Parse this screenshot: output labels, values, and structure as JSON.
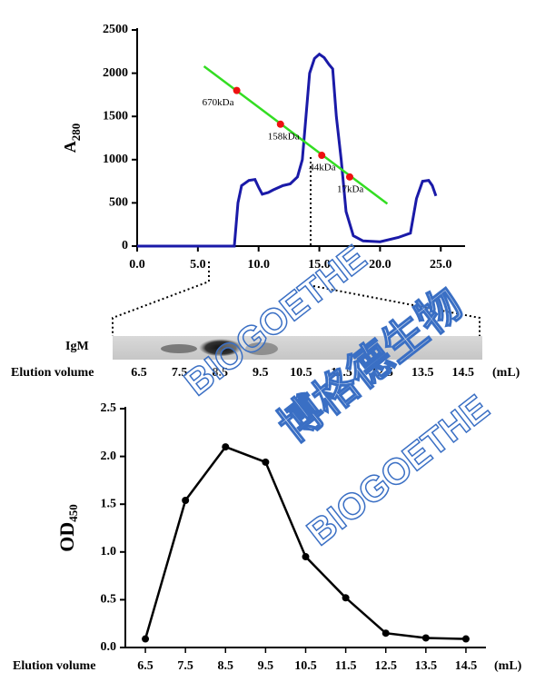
{
  "chart_data": [
    {
      "type": "line",
      "ylabel": "A",
      "ylabel_sub": "280",
      "xlim": [
        0,
        27
      ],
      "ylim": [
        0,
        2500
      ],
      "xticks": [
        {
          "value": 0,
          "label": "0.0"
        },
        {
          "value": 5,
          "label": "5.0"
        },
        {
          "value": 10,
          "label": "10.0"
        },
        {
          "value": 15,
          "label": "15.0"
        },
        {
          "value": 20,
          "label": "20.0"
        },
        {
          "value": 25,
          "label": "25.0"
        }
      ],
      "yticks": [
        0,
        500,
        1000,
        1500,
        2000,
        2500
      ],
      "series": [
        {
          "color": "#1a1aa8",
          "x": [
            0,
            8.0,
            8.3,
            8.6,
            9.2,
            9.7,
            10.0,
            10.3,
            10.8,
            11.2,
            12.0,
            12.6,
            13.2,
            13.6,
            13.9,
            14.2,
            14.6,
            15.0,
            15.4,
            15.8,
            16.1,
            16.4,
            16.8,
            17.2,
            17.8,
            18.6,
            20.0,
            21.5,
            22.5,
            23.0,
            23.5,
            24.0,
            24.3,
            24.6
          ],
          "values": [
            0,
            0,
            500,
            700,
            760,
            770,
            680,
            600,
            620,
            650,
            700,
            720,
            800,
            1000,
            1500,
            2000,
            2170,
            2220,
            2180,
            2100,
            2050,
            1500,
            1000,
            400,
            120,
            60,
            50,
            100,
            150,
            550,
            750,
            760,
            700,
            580
          ]
        },
        {
          "color": "#33dd22",
          "x": [
            5.5,
            20.6
          ],
          "values": [
            2080,
            490
          ]
        }
      ],
      "markers": {
        "color": "#ee1111",
        "points": [
          {
            "label": "670kDa",
            "x": 8.2,
            "y": 1800
          },
          {
            "label": "158kDa",
            "x": 11.8,
            "y": 1410
          },
          {
            "label": "44kDa",
            "x": 15.2,
            "y": 1050
          },
          {
            "label": "17kDa",
            "x": 17.5,
            "y": 800
          }
        ]
      }
    },
    {
      "type": "line",
      "ylabel": "OD",
      "ylabel_sub": "450",
      "xlabel": "Elution volume",
      "unit": "(mL)",
      "categories": [
        "6.5",
        "7.5",
        "8.5",
        "9.5",
        "10.5",
        "11.5",
        "12.5",
        "13.5",
        "14.5"
      ],
      "series": [
        {
          "color": "#000000",
          "values": [
            0.09,
            1.54,
            2.1,
            1.94,
            0.95,
            0.52,
            0.15,
            0.1,
            0.09
          ]
        }
      ],
      "ylim": [
        0,
        2.5
      ],
      "yticks": [
        {
          "value": 0,
          "label": "0.0"
        },
        {
          "value": 0.5,
          "label": "0.5"
        },
        {
          "value": 1,
          "label": "1.0"
        },
        {
          "value": 1.5,
          "label": "1.5"
        },
        {
          "value": 2,
          "label": "2.0"
        },
        {
          "value": 2.5,
          "label": "2.5"
        }
      ]
    }
  ],
  "blot": {
    "label": "IgM",
    "xlabel": "Elution volume",
    "unit": "(mL)",
    "categories": [
      "6.5",
      "7.5",
      "8.5",
      "9.5",
      "10.5",
      "11.5",
      "12.5",
      "13.5",
      "14.5"
    ]
  },
  "watermark": [
    "BIOGOETHE",
    "博格德生物",
    "BIOGOETHE"
  ]
}
